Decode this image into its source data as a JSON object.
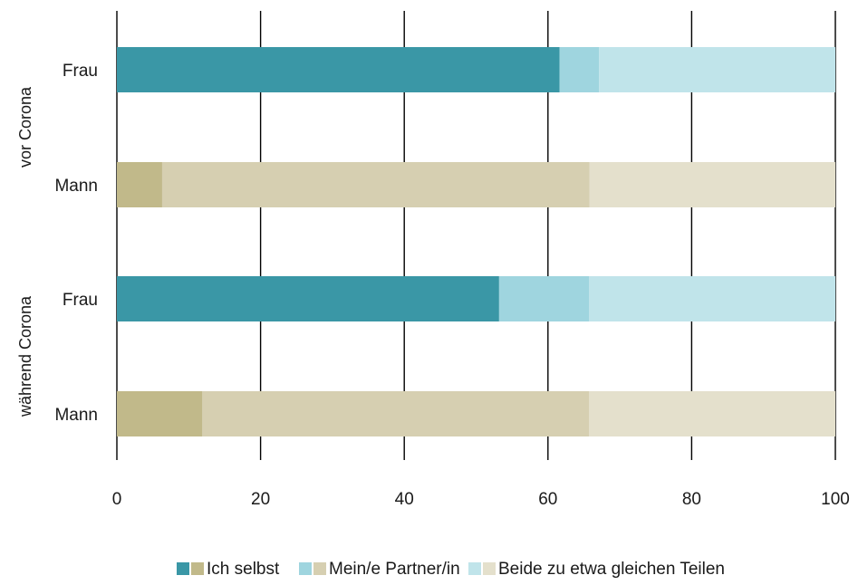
{
  "chart_data": {
    "type": "bar",
    "orientation": "horizontal",
    "stacked": true,
    "xlim": [
      0,
      100
    ],
    "x_ticks": [
      "0",
      "20",
      "40",
      "60",
      "80",
      "100"
    ],
    "grid": "vertical",
    "legend_position": "bottom",
    "groups": [
      {
        "label": "vor Corona",
        "rows": [
          {
            "label": "Frau",
            "values": [
              61.6,
              5.5,
              32.9
            ]
          },
          {
            "label": "Mann",
            "values": [
              6.3,
              59.5,
              34.2
            ]
          }
        ]
      },
      {
        "label": "während Corona",
        "rows": [
          {
            "label": "Frau",
            "values": [
              53.2,
              12.5,
              34.3
            ]
          },
          {
            "label": "Mann",
            "values": [
              11.9,
              53.8,
              34.3
            ]
          }
        ]
      }
    ],
    "series": [
      {
        "name": "Ich selbst"
      },
      {
        "name": "Mein/e Partner/in"
      },
      {
        "name": "Beide zu etwa gleichen Teilen"
      }
    ],
    "colors": {
      "Frau": [
        "#3a97a6",
        "#9fd5df",
        "#c0e4ea"
      ],
      "Mann": [
        "#c1b98a",
        "#d6cfb1",
        "#e4e0cc"
      ]
    }
  }
}
